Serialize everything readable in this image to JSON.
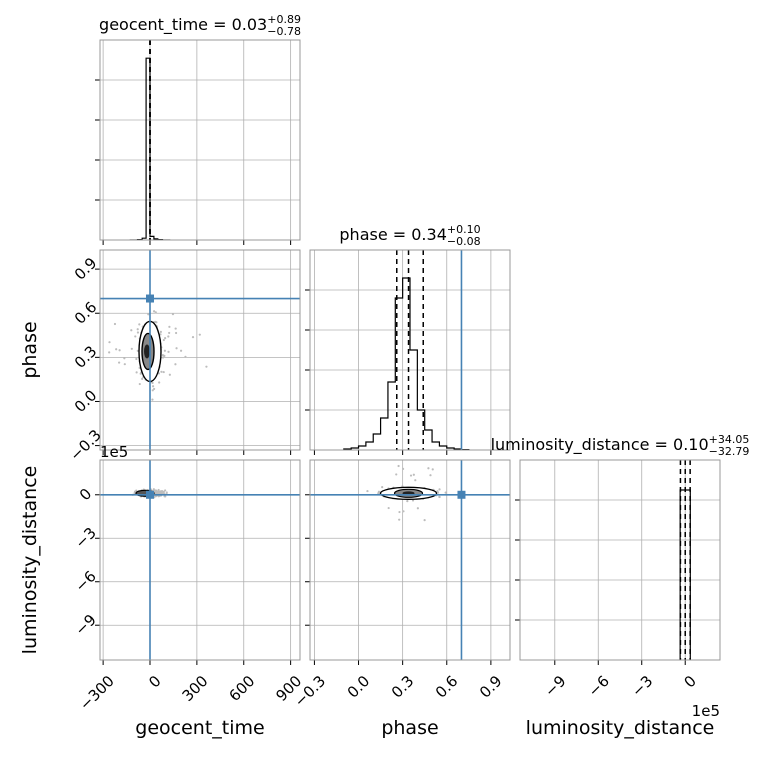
{
  "chart_data": {
    "type": "corner",
    "parameters": [
      {
        "name": "geocent_time",
        "axis_label": "geocent_time",
        "median": "0.03",
        "err_plus": "+0.89",
        "err_minus": "−0.78",
        "truth": 0,
        "range": [
          -320,
          960
        ],
        "ticks": [
          -300,
          0,
          300,
          600,
          900
        ],
        "tick_labels": [
          "−300",
          "0",
          "300",
          "600",
          "900"
        ],
        "offset_text": ""
      },
      {
        "name": "phase",
        "axis_label": "phase",
        "median": "0.34",
        "err_plus": "+0.10",
        "err_minus": "−0.08",
        "truth": 0.7,
        "range": [
          -0.33,
          1.03
        ],
        "ticks": [
          -0.3,
          0.0,
          0.3,
          0.6,
          0.9
        ],
        "tick_labels": [
          "−0.3",
          "0.0",
          "0.3",
          "0.6",
          "0.9"
        ],
        "offset_text": ""
      },
      {
        "name": "luminosity_distance",
        "axis_label": "luminosity_distance",
        "median": "0.10",
        "err_plus": "+34.05",
        "err_minus": "−32.79",
        "truth": 0,
        "range": [
          -11.4,
          2.4
        ],
        "ticks": [
          -9,
          -6,
          -3,
          0
        ],
        "tick_labels": [
          "−9",
          "−6",
          "−3",
          "0"
        ],
        "offset_text": "1e5"
      }
    ],
    "histograms": [
      {
        "param": "geocent_time",
        "quantiles": [
          -0.75,
          0.03,
          0.92
        ],
        "bins": [
          -130,
          -80,
          -50,
          -25,
          0,
          25,
          50,
          80,
          130
        ],
        "counts": [
          0.0,
          0.01,
          0.05,
          5.0,
          0.1,
          0.03,
          0.01,
          0.0
        ],
        "ymax": 5.5
      },
      {
        "param": "phase",
        "quantiles": [
          0.26,
          0.34,
          0.44
        ],
        "bins": [
          -0.1,
          -0.05,
          0.0,
          0.05,
          0.1,
          0.15,
          0.2,
          0.25,
          0.3,
          0.35,
          0.4,
          0.45,
          0.5,
          0.55,
          0.6,
          0.65,
          0.7,
          0.75
        ],
        "counts": [
          0.005,
          0.01,
          0.02,
          0.04,
          0.08,
          0.16,
          0.34,
          0.76,
          0.86,
          0.5,
          0.2,
          0.1,
          0.04,
          0.02,
          0.01,
          0.005,
          0.002
        ],
        "ymax": 1.0
      },
      {
        "param": "luminosity_distance",
        "quantiles": [
          -0.33,
          0.001,
          0.34
        ],
        "bins": [
          -0.35,
          0.0,
          0.35
        ],
        "counts": [
          0.85,
          0.85
        ],
        "ymax": 1.0
      }
    ],
    "grid": true
  }
}
